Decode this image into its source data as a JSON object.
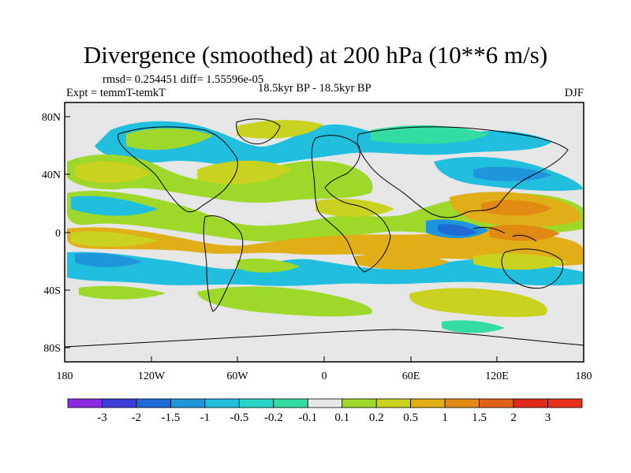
{
  "title": "Divergence (smoothed) at 200 hPa (10**6 m/s)",
  "stats": "rmsd= 0.254451 diff= 1.55596e-05",
  "experiment": "Expt = temmT-temkT",
  "period": "18.5kyr BP - 18.5kyr BP",
  "season": "DJF",
  "map": {
    "lon_ticks": [
      "180",
      "120W",
      "60W",
      "0",
      "60E",
      "120E",
      "180"
    ],
    "lat_ticks": [
      "80N",
      "40N",
      "0",
      "40S",
      "80S"
    ],
    "lon_range": [
      -180,
      180
    ],
    "lat_range": [
      -90,
      90
    ]
  },
  "colorbar": {
    "labels": [
      "-3",
      "-2",
      "-1.5",
      "-1",
      "-0.5",
      "-0.2",
      "-0.1",
      "0.1",
      "0.2",
      "0.5",
      "1",
      "1.5",
      "2",
      "3"
    ],
    "colors": [
      "#8a2be2",
      "#3c3cd8",
      "#1e6bd6",
      "#1f96dc",
      "#22bede",
      "#2ad4c8",
      "#33dca0",
      "#e8e8e8",
      "#9ed82a",
      "#c9d21e",
      "#e0ae16",
      "#e08a14",
      "#e2611a",
      "#e02a1c",
      "#e8321e"
    ]
  },
  "colors": {
    "land_background": "#e6e6e6",
    "coast": "#000000"
  }
}
